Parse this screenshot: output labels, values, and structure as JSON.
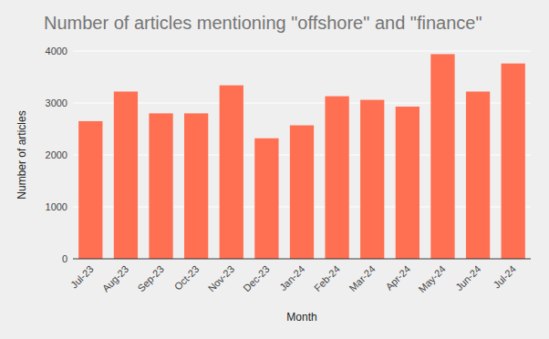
{
  "chart_data": {
    "type": "bar",
    "title": "Number of articles mentioning \"offshore\" and \"finance\"",
    "x_label": "Month",
    "y_label": "Number of articles",
    "categories": [
      "Jul-23",
      "Aug-23",
      "Sep-23",
      "Oct-23",
      "Nov-23",
      "Dec-23",
      "Jan-24",
      "Feb-24",
      "Mar-24",
      "Apr-24",
      "May-24",
      "Jun-24",
      "Jul-24"
    ],
    "values": [
      2650,
      3220,
      2800,
      2800,
      3340,
      2320,
      2570,
      3130,
      3060,
      2930,
      3940,
      3220,
      3760
    ],
    "color": "#ff6f52",
    "ylim": [
      0,
      4000
    ],
    "yticks": [
      0,
      1000,
      2000,
      3000,
      4000
    ],
    "grid": true
  }
}
